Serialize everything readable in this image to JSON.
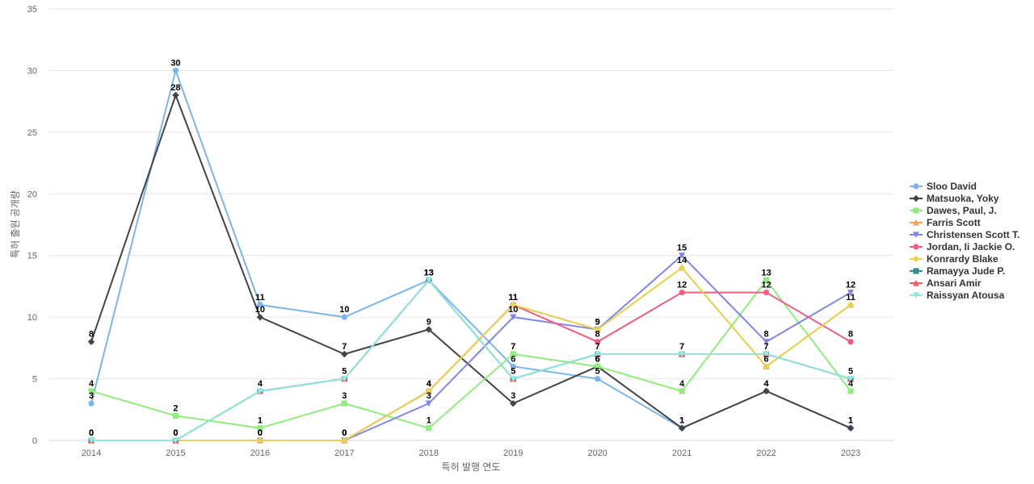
{
  "chart_data": {
    "type": "line",
    "xlabel": "특허 발행 연도",
    "ylabel": "특허 출원 공개량",
    "ylim": [
      0,
      35
    ],
    "yticks": [
      0,
      5,
      10,
      15,
      20,
      25,
      30,
      35
    ],
    "grid": true,
    "legend_position": "right",
    "x": [
      "2014",
      "2015",
      "2016",
      "2017",
      "2018",
      "2019",
      "2020",
      "2021",
      "2022",
      "2023"
    ],
    "series": [
      {
        "name": "Sloo David",
        "color": "#7cb5ec",
        "marker": "circle",
        "values": [
          3,
          30,
          11,
          10,
          13,
          6,
          5,
          1,
          4,
          1
        ]
      },
      {
        "name": "Matsuoka, Yoky",
        "color": "#434348",
        "marker": "diamond",
        "values": [
          8,
          28,
          10,
          7,
          9,
          3,
          6,
          1,
          4,
          1
        ]
      },
      {
        "name": "Dawes, Paul, J.",
        "color": "#90ed7d",
        "marker": "square",
        "values": [
          4,
          2,
          1,
          3,
          1,
          7,
          6,
          4,
          13,
          4
        ]
      },
      {
        "name": "Farris Scott",
        "color": "#f7a35c",
        "marker": "triangle",
        "values": [
          0,
          0,
          0,
          0,
          4,
          11,
          9,
          14,
          6,
          11
        ]
      },
      {
        "name": "Christensen Scott T.",
        "color": "#8085e9",
        "marker": "triangle-down",
        "values": [
          0,
          0,
          0,
          0,
          3,
          10,
          9,
          15,
          8,
          12
        ]
      },
      {
        "name": "Jordan, Ii Jackie O.",
        "color": "#f15c80",
        "marker": "circle",
        "values": [
          0,
          0,
          0,
          0,
          4,
          11,
          8,
          12,
          12,
          8
        ]
      },
      {
        "name": "Konrardy Blake",
        "color": "#e4d354",
        "marker": "diamond",
        "values": [
          0,
          0,
          0,
          0,
          4,
          11,
          9,
          14,
          6,
          11
        ]
      },
      {
        "name": "Ramayya Jude P.",
        "color": "#2b908f",
        "marker": "square",
        "values": [
          0,
          0,
          4,
          5,
          13,
          5,
          7,
          7,
          7,
          5
        ]
      },
      {
        "name": "Ansari Amir",
        "color": "#f45b5b",
        "marker": "triangle",
        "values": [
          0,
          0,
          4,
          5,
          13,
          5,
          7,
          7,
          7,
          5
        ]
      },
      {
        "name": "Raissyan Atousa",
        "color": "#91e8e1",
        "marker": "triangle-down",
        "values": [
          0,
          0,
          4,
          5,
          13,
          5,
          7,
          7,
          7,
          5
        ]
      }
    ],
    "data_labels": [
      {
        "series": "Sloo David",
        "values": [
          3,
          30,
          11,
          10,
          13,
          6,
          5,
          1,
          4,
          1
        ]
      },
      {
        "series": "Matsuoka, Yoky",
        "values": [
          8,
          28,
          10,
          7,
          9,
          3,
          6,
          1,
          4,
          1
        ]
      },
      {
        "series": "Dawes, Paul, J.",
        "values": [
          4,
          2,
          1,
          3,
          1,
          7,
          6,
          4,
          13,
          4
        ]
      },
      {
        "series": "Christensen Scott T.",
        "values": [
          0,
          0,
          0,
          0,
          3,
          10,
          9,
          15,
          8,
          12
        ]
      },
      {
        "series": "Jordan, Ii Jackie O.",
        "values": [
          0,
          0,
          0,
          0,
          4,
          11,
          8,
          12,
          12,
          8
        ]
      },
      {
        "series": "Konrardy Blake",
        "values": [
          0,
          0,
          0,
          0,
          4,
          11,
          9,
          14,
          6,
          11
        ]
      },
      {
        "series": "Raissyan Atousa",
        "values": [
          0,
          0,
          4,
          5,
          13,
          5,
          7,
          7,
          7,
          5
        ]
      }
    ]
  }
}
